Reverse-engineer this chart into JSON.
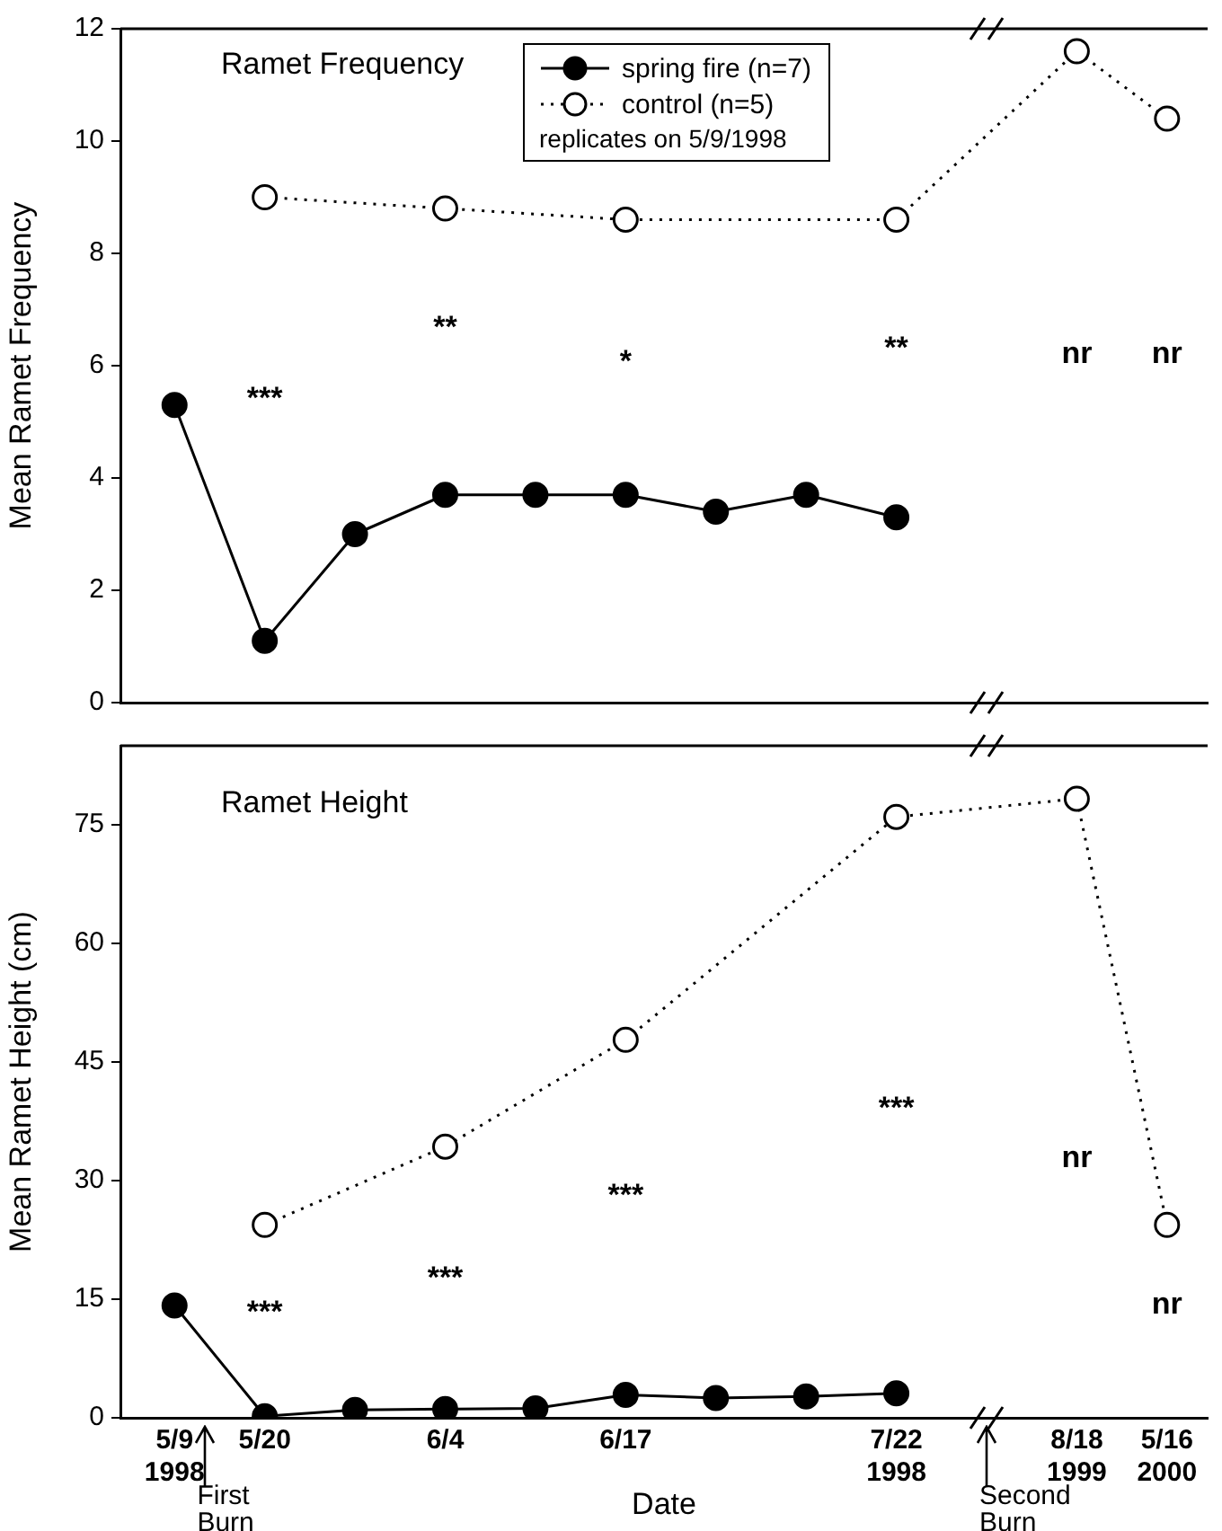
{
  "chart_data": [
    {
      "type": "line",
      "title": "Ramet Frequency",
      "ylabel": "Mean Ramet Frequency",
      "legend_title": "replicates on 5/9/1998",
      "series": [
        {
          "name": "spring fire (n=7)",
          "color": "#000000",
          "line_style": "solid",
          "values": [
            5.3,
            1.1,
            3.0,
            3.7,
            3.7,
            3.7,
            3.4,
            3.7,
            3.3,
            null,
            null,
            null
          ]
        },
        {
          "name": "control (n=5)",
          "color": "#000000",
          "line_style": "dotted",
          "values": [
            null,
            9.0,
            null,
            8.8,
            null,
            8.6,
            null,
            null,
            8.6,
            null,
            11.6,
            10.4
          ]
        }
      ],
      "ylim": [
        0,
        12
      ],
      "yticks": [
        0,
        2,
        4,
        6,
        8,
        10,
        12
      ],
      "grid": false,
      "legend": "top",
      "marker": "circle",
      "tick_labels": "y",
      "annotations": [
        "***",
        "**",
        "*",
        "**",
        "nr",
        "nr"
      ]
    },
    {
      "type": "line",
      "title": "Ramet Height",
      "ylabel": "Mean Ramet Height (cm)",
      "xlabel": "Date",
      "categories": [
        "5/9\n1998",
        "5/20",
        null,
        "6/4",
        null,
        "6/17",
        null,
        null,
        "7/22\n1998",
        null,
        "8/18\n1999",
        "5/16\n2000"
      ],
      "series": [
        {
          "color": "#000000",
          "line_style": "solid",
          "values": [
            14.2,
            0.2,
            1.0,
            1.1,
            1.2,
            2.9,
            2.5,
            2.7,
            3.1,
            null,
            null,
            null
          ]
        },
        {
          "color": "#000000",
          "line_style": "dotted",
          "values": [
            null,
            24.4,
            null,
            34.3,
            null,
            47.8,
            null,
            null,
            76.0,
            null,
            78.3,
            24.4
          ]
        }
      ],
      "ylim": [
        0,
        85
      ],
      "yticks": [
        0,
        15,
        30,
        45,
        60,
        75
      ],
      "grid": false,
      "legend": false,
      "marker": "circle",
      "annotations": [
        "***",
        "***",
        "***",
        "***",
        "nr",
        "nr",
        "First Burn",
        "Second Burn"
      ]
    }
  ]
}
